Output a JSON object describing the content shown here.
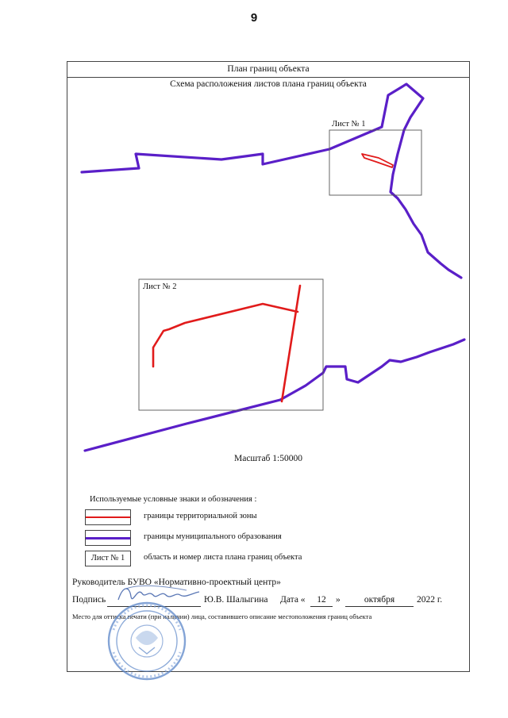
{
  "page_number": "9",
  "plan_title": "План границ объекта",
  "scheme_title": "Схема расположения листов плана границ объекта",
  "sheets": [
    {
      "label": "Лист № 1"
    },
    {
      "label": "Лист № 2"
    }
  ],
  "scale": "Масштаб 1:50000",
  "legend": {
    "heading": "Используемые условные знаки и обозначения :",
    "items": [
      {
        "text": "границы территориальной зоны",
        "color": "#e11b1b"
      },
      {
        "text": "границы муниципального образования",
        "color": "#5a1fc8"
      },
      {
        "text": "область и номер листа плана границ объекта",
        "sample": "Лист № 1"
      }
    ]
  },
  "footer": {
    "manager": "Руководитель БУВО «Нормативно-проектный центр»",
    "signature_label": "Подпись",
    "signer": "Ю.В. Шалыгина",
    "date_label": "Дата «",
    "day": "12",
    "quote_close": "»",
    "month": "октября",
    "year": "2022 г.",
    "stamp_note": "Место для оттиска печати (при наличии) лица, составившего описание местоположения границ объекта"
  },
  "colors": {
    "zone_boundary": "#e11b1b",
    "municipal_boundary": "#5a1fc8",
    "stamp": "#5b86c8"
  }
}
